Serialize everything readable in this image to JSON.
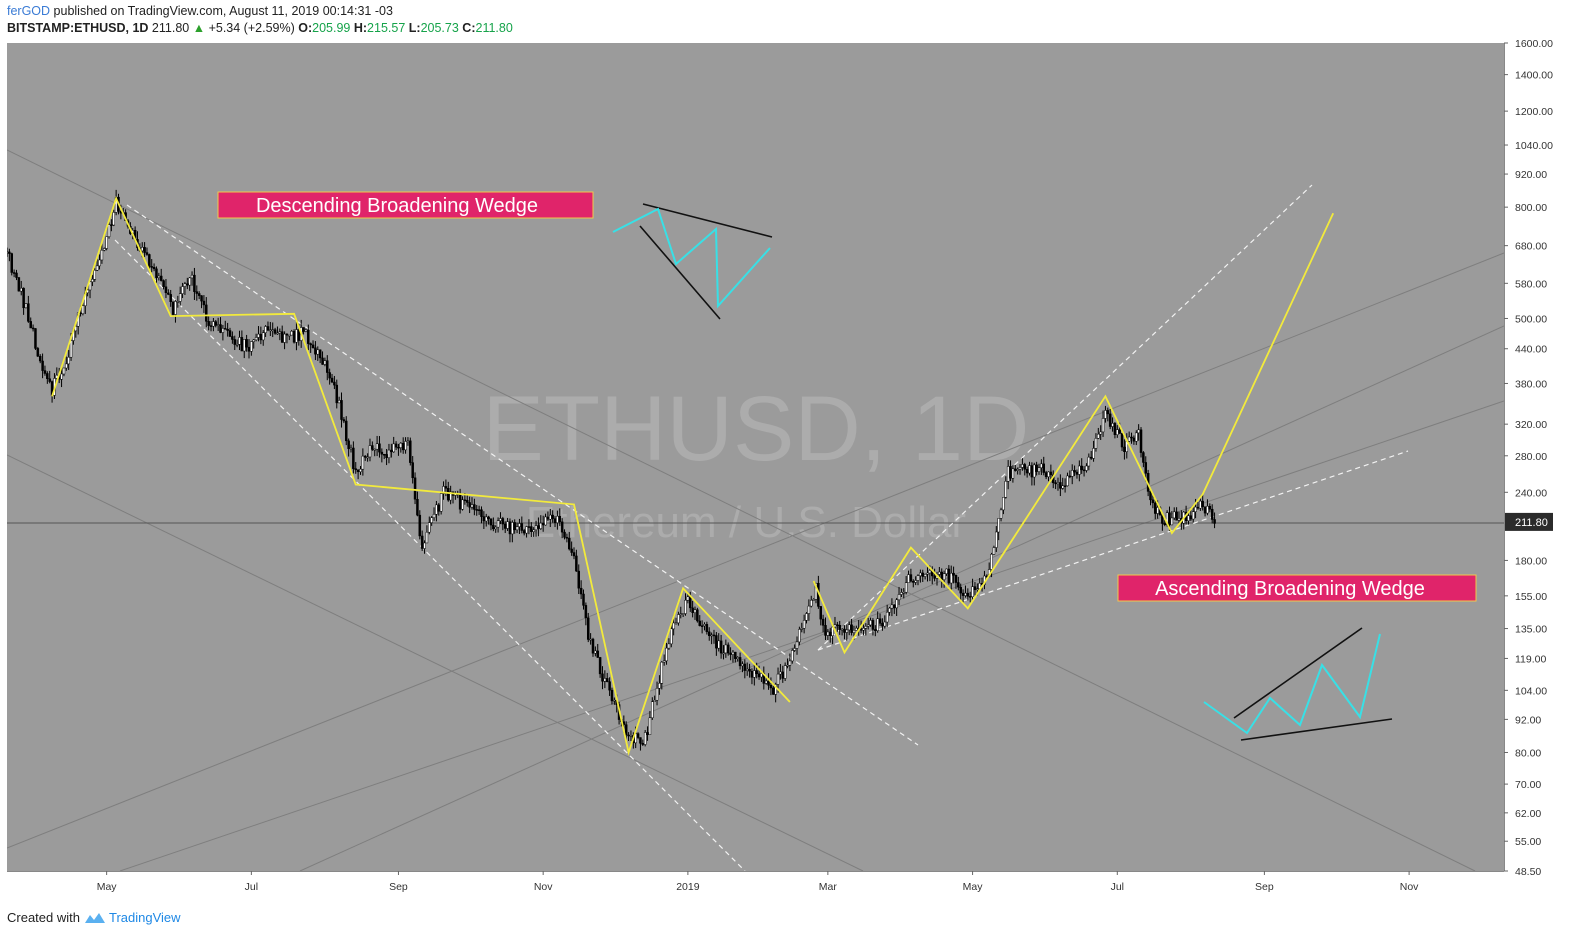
{
  "header": {
    "author": "ferGOD",
    "published_text": "published on TradingView.com, August 11, 2019 00:14:31 -03",
    "symbol": "BITSTAMP:ETHUSD, 1D",
    "last": "211.80",
    "change": "+5.34 (+2.59%)",
    "o_label": "O:",
    "o": "205.99",
    "h_label": "H:",
    "h": "215.57",
    "l_label": "L:",
    "l": "205.73",
    "c_label": "C:",
    "c": "211.80"
  },
  "footer": {
    "created_with": "Created with",
    "brand": "TradingView"
  },
  "colors": {
    "background": "#9b9b9b",
    "pattern_line": "#f2ea3c",
    "label_box": "#e0246a",
    "schematic_cyan": "#38e0e6",
    "price_tag": "#2b2b2b"
  },
  "chart_data": {
    "type": "candlestick",
    "symbol": "ETHUSD",
    "timeframe": "1D",
    "watermark_primary": "ETHUSD, 1D",
    "watermark_secondary": "Ethereum / U.S. Dollar",
    "y_scale": "log",
    "ylim": [
      48.5,
      1600
    ],
    "y_ticks": [
      "1600.00",
      "1400.00",
      "1200.00",
      "1040.00",
      "920.00",
      "800.00",
      "680.00",
      "580.00",
      "500.00",
      "440.00",
      "380.00",
      "320.00",
      "280.00",
      "240.00",
      "180.00",
      "155.00",
      "135.00",
      "119.00",
      "104.00",
      "92.00",
      "80.00",
      "70.00",
      "62.00",
      "55.00",
      "48.50"
    ],
    "y_tick_values": [
      1600,
      1400,
      1200,
      1040,
      920,
      800,
      680,
      580,
      500,
      440,
      380,
      320,
      280,
      240,
      180,
      155,
      135,
      119,
      104,
      92,
      80,
      70,
      62,
      55,
      48.5
    ],
    "x_ticks": [
      "May",
      "Jul",
      "Sep",
      "Nov",
      "2019",
      "Mar",
      "May",
      "Jul",
      "Sep",
      "Nov"
    ],
    "x_tick_dates": [
      "2018-05-01",
      "2018-07-01",
      "2018-09-01",
      "2018-11-01",
      "2019-01-01",
      "2019-03-01",
      "2019-05-01",
      "2019-07-01",
      "2019-09-01",
      "2019-11-01"
    ],
    "last_price": "211.80",
    "last_price_value": 211.8,
    "xlim": [
      "2018-03-20",
      "2019-12-11"
    ],
    "price_path": [
      [
        "2018-03-20",
        660
      ],
      [
        "2018-03-28",
        520
      ],
      [
        "2018-04-05",
        390
      ],
      [
        "2018-04-08",
        370
      ],
      [
        "2018-04-15",
        430
      ],
      [
        "2018-04-22",
        560
      ],
      [
        "2018-05-01",
        700
      ],
      [
        "2018-05-05",
        820
      ],
      [
        "2018-05-13",
        700
      ],
      [
        "2018-05-24",
        580
      ],
      [
        "2018-05-29",
        520
      ],
      [
        "2018-06-05",
        600
      ],
      [
        "2018-06-13",
        490
      ],
      [
        "2018-06-22",
        460
      ],
      [
        "2018-06-30",
        440
      ],
      [
        "2018-07-08",
        480
      ],
      [
        "2018-07-15",
        460
      ],
      [
        "2018-07-24",
        470
      ],
      [
        "2018-08-04",
        390
      ],
      [
        "2018-08-14",
        260
      ],
      [
        "2018-08-20",
        290
      ],
      [
        "2018-08-28",
        285
      ],
      [
        "2018-09-05",
        290
      ],
      [
        "2018-09-11",
        190
      ],
      [
        "2018-09-20",
        240
      ],
      [
        "2018-09-30",
        225
      ],
      [
        "2018-10-10",
        210
      ],
      [
        "2018-10-25",
        205
      ],
      [
        "2018-11-08",
        215
      ],
      [
        "2018-11-14",
        180
      ],
      [
        "2018-11-20",
        130
      ],
      [
        "2018-11-26",
        110
      ],
      [
        "2018-12-07",
        85
      ],
      [
        "2018-12-14",
        85
      ],
      [
        "2018-12-25",
        135
      ],
      [
        "2019-01-01",
        150
      ],
      [
        "2019-01-10",
        130
      ],
      [
        "2019-01-22",
        118
      ],
      [
        "2019-02-06",
        105
      ],
      [
        "2019-02-14",
        120
      ],
      [
        "2019-02-24",
        160
      ],
      [
        "2019-02-27",
        135
      ],
      [
        "2019-03-10",
        135
      ],
      [
        "2019-03-25",
        138
      ],
      [
        "2019-04-04",
        165
      ],
      [
        "2019-04-20",
        170
      ],
      [
        "2019-04-28",
        155
      ],
      [
        "2019-05-06",
        165
      ],
      [
        "2019-05-11",
        200
      ],
      [
        "2019-05-16",
        260
      ],
      [
        "2019-05-30",
        265
      ],
      [
        "2019-06-08",
        245
      ],
      [
        "2019-06-20",
        280
      ],
      [
        "2019-06-26",
        330
      ],
      [
        "2019-07-04",
        290
      ],
      [
        "2019-07-10",
        305
      ],
      [
        "2019-07-15",
        230
      ],
      [
        "2019-07-20",
        215
      ],
      [
        "2019-07-30",
        215
      ],
      [
        "2019-08-05",
        228
      ],
      [
        "2019-08-11",
        211.8
      ]
    ],
    "annotations": [
      {
        "text": "Descending Broadening Wedge"
      },
      {
        "text": "Ascending Broadening Wedge"
      }
    ],
    "pattern_descending": [
      [
        "2018-04-08",
        360
      ],
      [
        "2018-05-05",
        830
      ],
      [
        "2018-05-28",
        505
      ],
      [
        "2018-07-19",
        510
      ],
      [
        "2018-08-14",
        248
      ],
      [
        "2018-11-14",
        228
      ],
      [
        "2018-12-07",
        80
      ],
      [
        "2018-12-30",
        160
      ],
      [
        "2019-02-13",
        99
      ]
    ],
    "pattern_ascending": [
      [
        "2019-02-23",
        165
      ],
      [
        "2019-03-08",
        122
      ],
      [
        "2019-04-05",
        190
      ],
      [
        "2019-04-29",
        147
      ],
      [
        "2019-06-26",
        360
      ],
      [
        "2019-07-24",
        202
      ],
      [
        "2019-08-06",
        238
      ],
      [
        "2019-09-30",
        780
      ]
    ]
  }
}
